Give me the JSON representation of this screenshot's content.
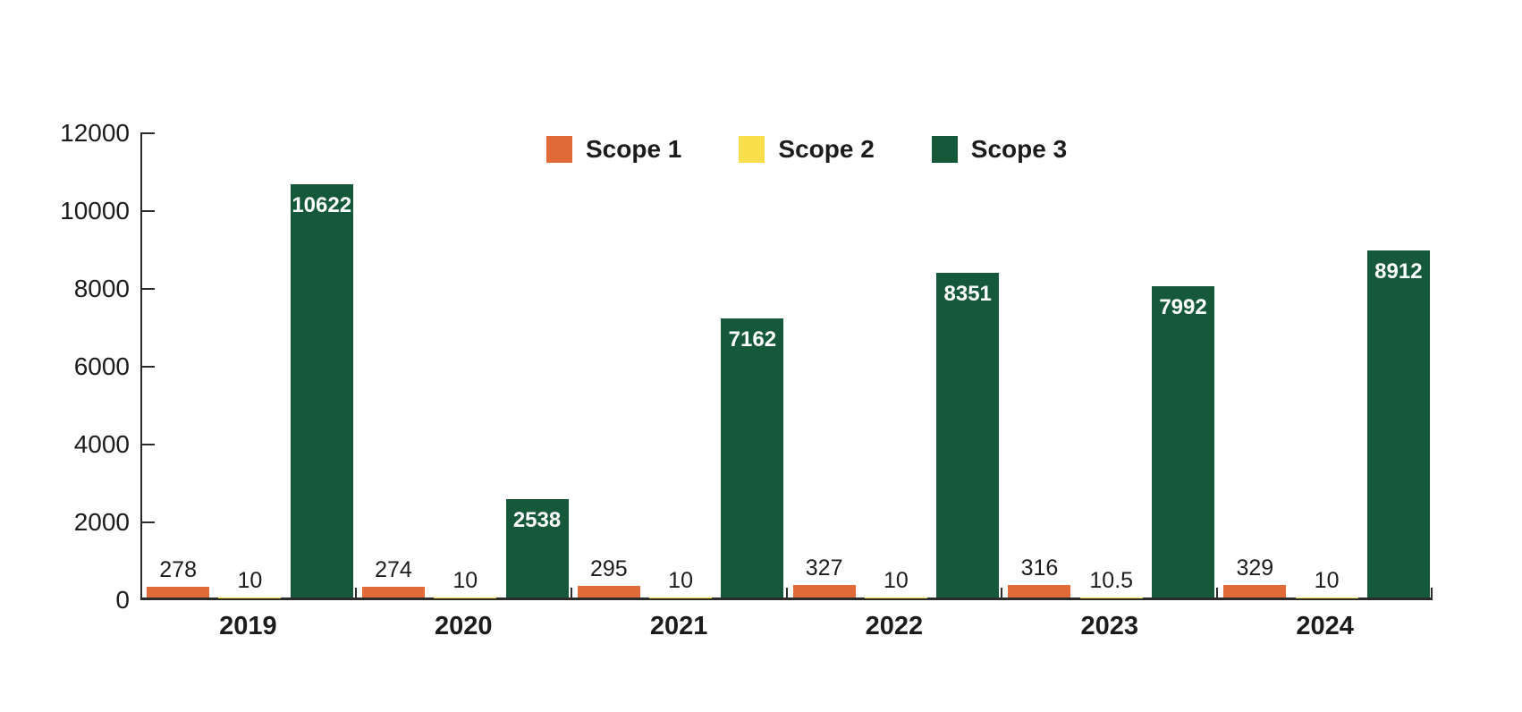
{
  "chart_data": {
    "type": "bar",
    "title": "",
    "xlabel": "",
    "ylabel": "",
    "categories": [
      "2019",
      "2020",
      "2021",
      "2022",
      "2023",
      "2024"
    ],
    "series": [
      {
        "name": "Scope 1",
        "color": "#E06A38",
        "label_style": "above",
        "values": [
          278,
          274,
          295,
          327,
          316,
          329
        ]
      },
      {
        "name": "Scope 2",
        "color": "#FADD4B",
        "label_style": "above",
        "values": [
          10,
          10,
          10,
          10,
          10.5,
          10
        ]
      },
      {
        "name": "Scope 3",
        "color": "#15593A",
        "label_style": "inside",
        "values": [
          10622,
          2538,
          7162,
          8351,
          7992,
          8912
        ]
      }
    ],
    "ylim": [
      0,
      12000
    ],
    "yticks": [
      0,
      2000,
      4000,
      6000,
      8000,
      10000,
      12000
    ],
    "grid": false,
    "legend_position": "top-center",
    "colors": {
      "axis": "#2B2B2B",
      "text": "#1C1C1C",
      "bar_label_inside": "#FFFFFF",
      "background": "#FFFFFF"
    }
  }
}
